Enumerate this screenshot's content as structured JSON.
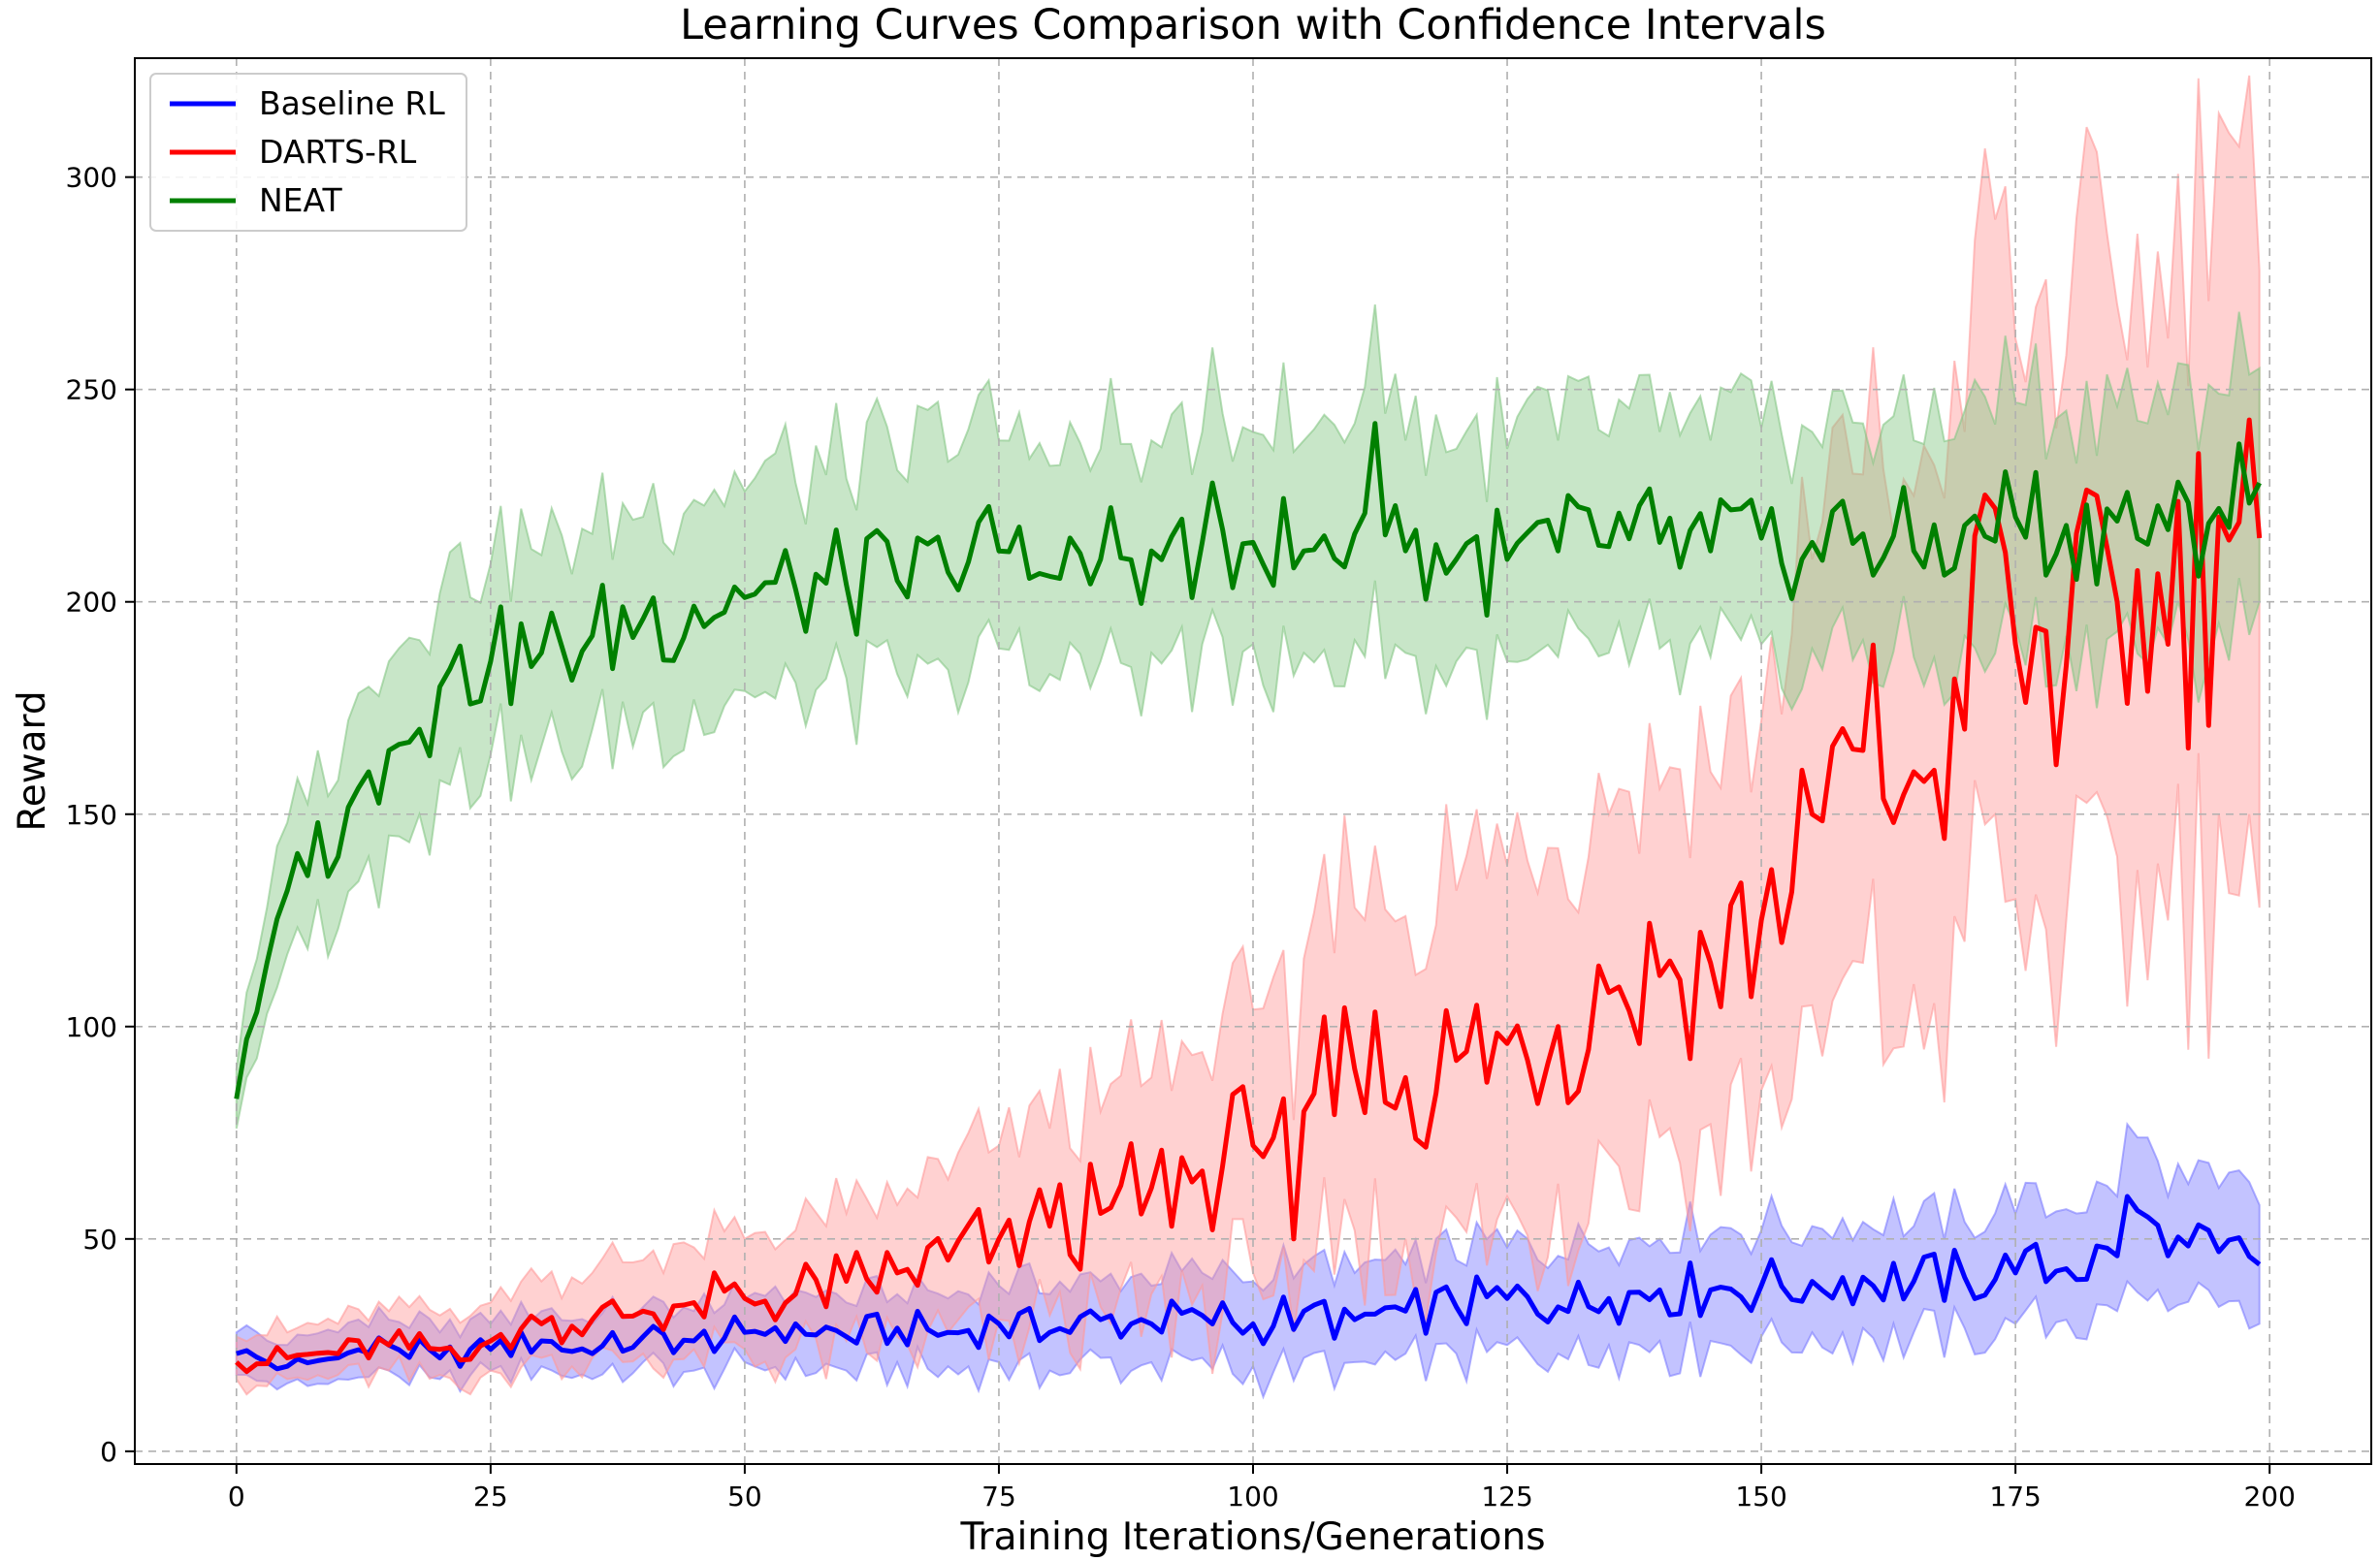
{
  "chart_data": {
    "type": "line",
    "title": "Learning Curves Comparison with Confidence Intervals",
    "xlabel": "Training Iterations/Generations",
    "ylabel": "Reward",
    "xlim": [
      -10,
      210
    ],
    "ylim": [
      -3,
      328
    ],
    "xticks": [
      0,
      25,
      50,
      75,
      100,
      125,
      150,
      175,
      200
    ],
    "yticks": [
      0,
      50,
      100,
      150,
      200,
      250,
      300
    ],
    "grid": true,
    "legend_position": "top-left",
    "confidence_intervals": true,
    "series": [
      {
        "name": "Baseline RL",
        "color": "#0000ff",
        "ci_color": "#7b7bff",
        "x": [
          0,
          5,
          10,
          15,
          20,
          25,
          30,
          35,
          40,
          45,
          50,
          55,
          60,
          65,
          70,
          75,
          80,
          85,
          90,
          95,
          100,
          105,
          110,
          115,
          120,
          125,
          130,
          135,
          140,
          145,
          150,
          155,
          160,
          165,
          170,
          175,
          180,
          185,
          186,
          190,
          195,
          199
        ],
        "values": [
          23,
          20,
          22,
          25,
          22,
          24,
          26,
          23,
          27,
          26,
          28,
          30,
          27,
          29,
          28,
          30,
          28,
          31,
          30,
          32,
          30,
          33,
          31,
          33,
          34,
          36,
          34,
          36,
          38,
          38,
          39,
          40,
          41,
          40,
          41,
          42,
          43,
          46,
          60,
          46,
          47,
          44
        ],
        "ci_lower": [
          18,
          16,
          17,
          19,
          17,
          19,
          20,
          17,
          21,
          19,
          21,
          22,
          19,
          21,
          20,
          21,
          19,
          22,
          21,
          22,
          20,
          22,
          21,
          23,
          23,
          25,
          23,
          25,
          26,
          26,
          27,
          28,
          29,
          28,
          29,
          30,
          31,
          33,
          40,
          33,
          34,
          30
        ],
        "ci_upper": [
          28,
          25,
          28,
          31,
          28,
          30,
          33,
          30,
          34,
          33,
          36,
          38,
          35,
          37,
          36,
          39,
          37,
          40,
          39,
          42,
          40,
          44,
          42,
          44,
          45,
          48,
          46,
          48,
          50,
          51,
          52,
          53,
          54,
          53,
          54,
          56,
          57,
          60,
          77,
          60,
          62,
          58
        ]
      },
      {
        "name": "DARTS-RL",
        "color": "#ff0000",
        "ci_color": "#ff9a9a",
        "x": [
          0,
          5,
          10,
          15,
          20,
          25,
          30,
          35,
          40,
          45,
          50,
          55,
          60,
          65,
          70,
          75,
          80,
          85,
          90,
          95,
          100,
          103,
          104,
          105,
          110,
          115,
          120,
          125,
          130,
          135,
          140,
          145,
          150,
          155,
          160,
          165,
          170,
          173,
          175,
          180,
          185,
          190,
          195,
          199
        ],
        "values": [
          21,
          22,
          23,
          25,
          24,
          26,
          30,
          31,
          33,
          35,
          36,
          37,
          40,
          42,
          45,
          50,
          53,
          56,
          62,
          66,
          72,
          83,
          50,
          80,
          90,
          88,
          92,
          96,
          100,
          108,
          112,
          115,
          125,
          150,
          165,
          160,
          170,
          222,
          190,
          185,
          200,
          190,
          220,
          215
        ],
        "ci_lower": [
          17,
          17,
          18,
          19,
          18,
          19,
          22,
          22,
          23,
          24,
          24,
          24,
          26,
          27,
          28,
          31,
          32,
          34,
          37,
          39,
          42,
          48,
          28,
          45,
          52,
          50,
          55,
          60,
          63,
          70,
          74,
          77,
          85,
          105,
          115,
          110,
          120,
          150,
          130,
          125,
          140,
          125,
          150,
          128
        ],
        "ci_upper": [
          27,
          28,
          30,
          33,
          32,
          35,
          40,
          42,
          45,
          48,
          50,
          52,
          56,
          58,
          64,
          72,
          76,
          80,
          88,
          94,
          104,
          118,
          78,
          116,
          128,
          126,
          132,
          138,
          142,
          150,
          156,
          160,
          172,
          210,
          230,
          225,
          240,
          290,
          262,
          258,
          270,
          262,
          315,
          278
        ]
      },
      {
        "name": "NEAT",
        "color": "#008000",
        "ci_color": "#86c786",
        "x": [
          0,
          1,
          3,
          5,
          8,
          10,
          13,
          15,
          18,
          20,
          25,
          30,
          35,
          40,
          45,
          50,
          55,
          60,
          65,
          70,
          75,
          80,
          85,
          90,
          95,
          100,
          105,
          110,
          112,
          115,
          120,
          125,
          130,
          135,
          140,
          145,
          150,
          155,
          160,
          165,
          170,
          175,
          180,
          185,
          190,
          195,
          199
        ],
        "values": [
          83,
          97,
          115,
          132,
          148,
          140,
          160,
          165,
          170,
          180,
          186,
          188,
          192,
          196,
          199,
          201,
          203,
          204,
          205,
          207,
          212,
          206,
          210,
          212,
          214,
          214,
          212,
          216,
          242,
          212,
          210,
          210,
          212,
          213,
          214,
          212,
          215,
          214,
          216,
          212,
          218,
          220,
          218,
          219,
          217,
          222,
          228
        ],
        "ci_lower": [
          76,
          88,
          103,
          117,
          130,
          123,
          140,
          145,
          150,
          158,
          164,
          166,
          170,
          174,
          177,
          179,
          181,
          182,
          183,
          184,
          189,
          183,
          186,
          188,
          190,
          190,
          188,
          191,
          205,
          188,
          186,
          186,
          187,
          188,
          189,
          187,
          190,
          189,
          191,
          187,
          192,
          194,
          192,
          193,
          190,
          195,
          200
        ],
        "ci_upper": [
          90,
          108,
          128,
          148,
          165,
          158,
          180,
          186,
          191,
          202,
          209,
          211,
          216,
          220,
          224,
          226,
          228,
          229,
          231,
          233,
          238,
          232,
          236,
          238,
          240,
          240,
          238,
          242,
          270,
          238,
          236,
          236,
          238,
          239,
          240,
          238,
          241,
          240,
          242,
          238,
          245,
          247,
          245,
          246,
          244,
          249,
          255
        ]
      }
    ]
  }
}
